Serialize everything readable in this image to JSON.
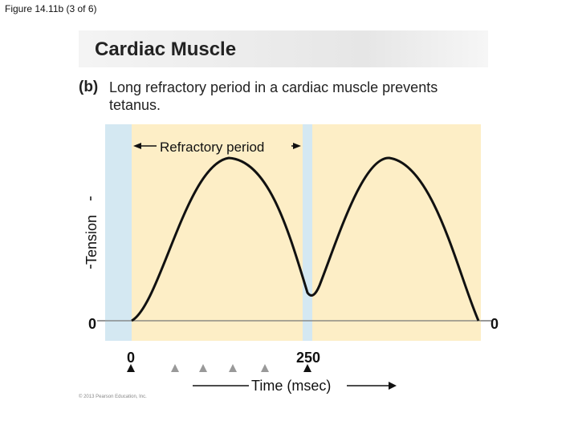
{
  "figure_label": "Figure 14.11b (3 of 6)",
  "banner_title": "Cardiac Muscle",
  "part_label": "(b)",
  "caption": "Long refractory period in a cardiac muscle prevents tetanus.",
  "refractory_label": "Refractory period",
  "y_axis_label": "Tension",
  "y_zero_left": "0",
  "y_zero_right": "0",
  "x_tick_0": "0",
  "x_tick_250": "250",
  "x_axis_label": "Time (msec)",
  "copyright": "© 2013 Pearson Education, Inc.",
  "colors": {
    "background_panel": "#fdeec6",
    "refractory_band": "#d4e8f2",
    "curve": "#111111"
  }
}
